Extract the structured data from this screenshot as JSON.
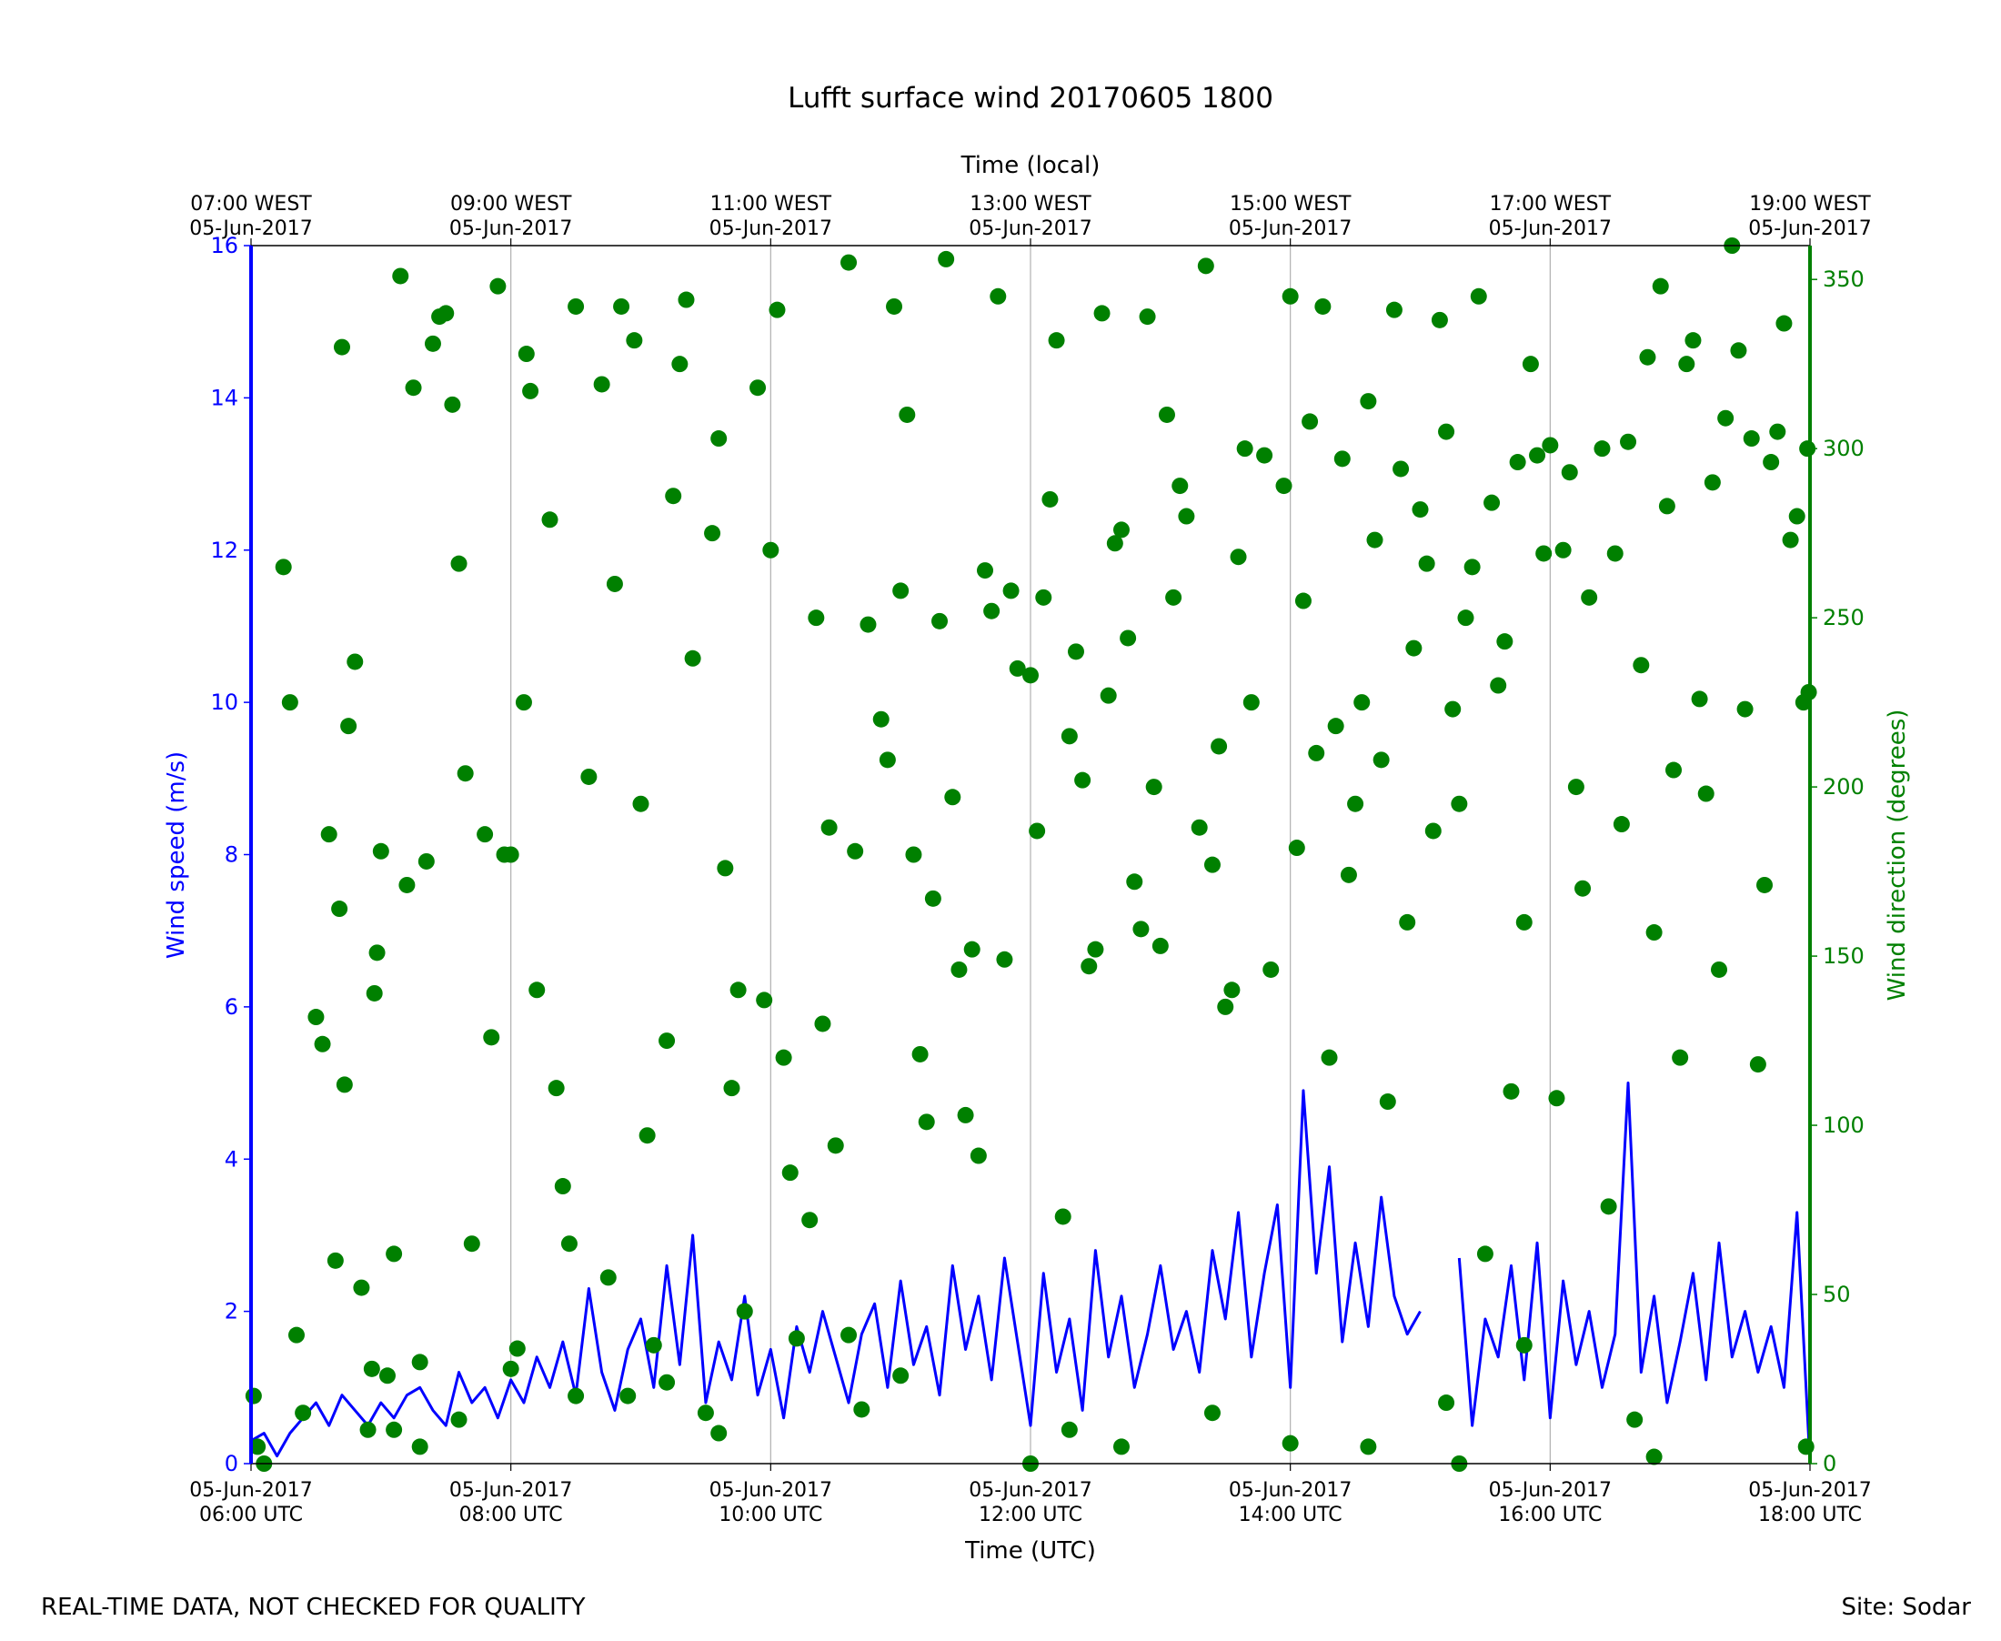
{
  "chart_data": {
    "type": "line",
    "title": "Lufft surface wind 20170605 1800",
    "x_label": "Time (UTC)",
    "x2_label": "Time (local)",
    "y_label": "Wind speed (m/s)",
    "y2_label": "Wind direction (degrees)",
    "footer_left": "REAL-TIME DATA, NOT CHECKED FOR QUALITY",
    "footer_right": "Site: Sodar",
    "grid": "x",
    "xlim": [
      6,
      18
    ],
    "xticks": [
      {
        "value": 6,
        "label": [
          "05-Jun-2017",
          "06:00 UTC"
        ]
      },
      {
        "value": 8,
        "label": [
          "05-Jun-2017",
          "08:00 UTC"
        ]
      },
      {
        "value": 10,
        "label": [
          "05-Jun-2017",
          "10:00 UTC"
        ]
      },
      {
        "value": 12,
        "label": [
          "05-Jun-2017",
          "12:00 UTC"
        ]
      },
      {
        "value": 14,
        "label": [
          "05-Jun-2017",
          "14:00 UTC"
        ]
      },
      {
        "value": 16,
        "label": [
          "05-Jun-2017",
          "16:00 UTC"
        ]
      },
      {
        "value": 18,
        "label": [
          "05-Jun-2017",
          "18:00 UTC"
        ]
      }
    ],
    "x2lim": [
      7,
      19
    ],
    "x2ticks": [
      {
        "value": 7,
        "label": [
          "07:00 WEST",
          "05-Jun-2017"
        ]
      },
      {
        "value": 9,
        "label": [
          "09:00 WEST",
          "05-Jun-2017"
        ]
      },
      {
        "value": 11,
        "label": [
          "11:00 WEST",
          "05-Jun-2017"
        ]
      },
      {
        "value": 13,
        "label": [
          "13:00 WEST",
          "05-Jun-2017"
        ]
      },
      {
        "value": 15,
        "label": [
          "15:00 WEST",
          "05-Jun-2017"
        ]
      },
      {
        "value": 17,
        "label": [
          "17:00 WEST",
          "05-Jun-2017"
        ]
      },
      {
        "value": 19,
        "label": [
          "19:00 WEST",
          "05-Jun-2017"
        ]
      }
    ],
    "ylim": [
      0,
      16
    ],
    "yticks": [
      0,
      2,
      4,
      6,
      8,
      10,
      12,
      14,
      16
    ],
    "y2lim": [
      0,
      360
    ],
    "y2ticks": [
      0,
      50,
      100,
      150,
      200,
      250,
      300,
      350
    ],
    "series": [
      {
        "type": "line",
        "color": "#0000ff",
        "x": [
          6.0,
          6.1,
          6.2,
          6.3,
          6.4,
          6.5,
          6.6,
          6.7,
          6.8,
          6.9,
          7.0,
          7.1,
          7.2,
          7.3,
          7.4,
          7.5,
          7.6,
          7.7,
          7.8,
          7.9,
          8.0,
          8.1,
          8.2,
          8.3,
          8.4,
          8.5,
          8.6,
          8.7,
          8.8,
          8.9,
          9.0,
          9.1,
          9.2,
          9.3,
          9.4,
          9.5,
          9.6,
          9.7,
          9.8,
          9.9,
          10.0,
          10.1,
          10.2,
          10.3,
          10.4,
          10.5,
          10.6,
          10.7,
          10.8,
          10.9,
          11.0,
          11.1,
          11.2,
          11.3,
          11.4,
          11.5,
          11.6,
          11.7,
          11.8,
          11.9,
          12.0,
          12.1,
          12.2,
          12.3,
          12.4,
          12.5,
          12.6,
          12.7,
          12.8,
          12.9,
          13.0,
          13.1,
          13.2,
          13.3,
          13.4,
          13.5,
          13.6,
          13.7,
          13.8,
          13.9,
          14.0,
          14.1,
          14.2,
          14.3,
          14.4,
          14.5,
          14.6,
          14.7,
          14.8,
          14.9,
          15.0,
          15.1,
          15.2,
          15.3,
          15.4,
          15.5,
          15.6,
          15.7,
          15.8,
          15.9,
          16.0,
          16.1,
          16.2,
          16.3,
          16.4,
          16.5,
          16.6,
          16.7,
          16.8,
          16.9,
          17.0,
          17.1,
          17.2,
          17.3,
          17.4,
          17.5,
          17.6,
          17.7,
          17.8,
          17.9,
          18.0
        ],
        "values": [
          0.3,
          0.4,
          0.1,
          0.4,
          0.6,
          0.8,
          0.5,
          0.9,
          0.7,
          0.5,
          0.8,
          0.6,
          0.9,
          1.0,
          0.7,
          0.5,
          1.2,
          0.8,
          1.0,
          0.6,
          1.1,
          0.8,
          1.4,
          1.0,
          1.6,
          0.9,
          2.3,
          1.2,
          0.7,
          1.5,
          1.9,
          1.0,
          2.6,
          1.3,
          3.0,
          0.8,
          1.6,
          1.1,
          2.2,
          0.9,
          1.5,
          0.6,
          1.8,
          1.2,
          2.0,
          1.4,
          0.8,
          1.7,
          2.1,
          1.0,
          2.4,
          1.3,
          1.8,
          0.9,
          2.6,
          1.5,
          2.2,
          1.1,
          2.7,
          1.6,
          0.5,
          2.5,
          1.2,
          1.9,
          0.7,
          2.8,
          1.4,
          2.2,
          1.0,
          1.7,
          2.6,
          1.5,
          2.0,
          1.2,
          2.8,
          1.9,
          3.3,
          1.4,
          2.5,
          3.4,
          1.0,
          4.9,
          2.5,
          3.9,
          1.6,
          2.9,
          1.8,
          3.5,
          2.2,
          1.7,
          2.0,
          null,
          null,
          2.7,
          0.5,
          1.9,
          1.4,
          2.6,
          1.1,
          2.9,
          0.6,
          2.4,
          1.3,
          2.0,
          1.0,
          1.7,
          5.0,
          1.2,
          2.2,
          0.8,
          1.6,
          2.5,
          1.1,
          2.9,
          1.4,
          2.0,
          1.2,
          1.8,
          1.0,
          3.3,
          0.0
        ]
      },
      {
        "type": "scatter",
        "axis": "y2",
        "color": "#008000",
        "x": [
          6.02,
          6.05,
          6.1,
          6.25,
          6.3,
          6.35,
          6.4,
          6.5,
          6.55,
          6.6,
          6.65,
          6.68,
          6.7,
          6.72,
          6.75,
          6.8,
          6.85,
          6.9,
          6.93,
          6.95,
          6.97,
          7.0,
          7.05,
          7.1,
          7.1,
          7.15,
          7.2,
          7.25,
          7.3,
          7.3,
          7.35,
          7.4,
          7.45,
          7.5,
          7.55,
          7.6,
          7.6,
          7.65,
          7.7,
          7.8,
          7.85,
          7.9,
          7.95,
          8.0,
          8.0,
          8.05,
          8.1,
          8.12,
          8.15,
          8.2,
          8.3,
          8.35,
          8.4,
          8.45,
          8.5,
          8.5,
          8.6,
          8.7,
          8.75,
          8.8,
          8.85,
          8.9,
          8.95,
          9.0,
          9.05,
          9.1,
          9.2,
          9.2,
          9.25,
          9.3,
          9.35,
          9.4,
          9.5,
          9.55,
          9.6,
          9.6,
          9.65,
          9.7,
          9.75,
          9.8,
          9.9,
          9.95,
          10.0,
          10.05,
          10.1,
          10.15,
          10.2,
          10.3,
          10.35,
          10.4,
          10.45,
          10.5,
          10.6,
          10.6,
          10.65,
          10.7,
          10.75,
          10.85,
          10.9,
          10.95,
          11.0,
          11.0,
          11.05,
          11.1,
          11.15,
          11.2,
          11.25,
          11.3,
          11.35,
          11.4,
          11.45,
          11.5,
          11.55,
          11.6,
          11.65,
          11.7,
          11.75,
          11.8,
          11.85,
          11.9,
          12.0,
          12.0,
          12.05,
          12.1,
          12.15,
          12.2,
          12.25,
          12.3,
          12.3,
          12.35,
          12.4,
          12.45,
          12.5,
          12.55,
          12.6,
          12.65,
          12.7,
          12.7,
          12.75,
          12.8,
          12.85,
          12.9,
          12.95,
          13.0,
          13.05,
          13.1,
          13.15,
          13.2,
          13.3,
          13.35,
          13.4,
          13.4,
          13.45,
          13.5,
          13.55,
          13.6,
          13.65,
          13.7,
          13.8,
          13.85,
          13.95,
          14.0,
          14.0,
          14.05,
          14.1,
          14.15,
          14.2,
          14.25,
          14.3,
          14.35,
          14.4,
          14.45,
          14.5,
          14.55,
          14.6,
          14.6,
          14.65,
          14.7,
          14.75,
          14.8,
          14.85,
          14.9,
          14.95,
          15.0,
          15.05,
          15.1,
          15.15,
          15.2,
          15.2,
          15.25,
          15.3,
          15.3,
          15.35,
          15.4,
          15.45,
          15.5,
          15.55,
          15.6,
          15.65,
          15.7,
          15.75,
          15.8,
          15.8,
          15.85,
          15.9,
          15.95,
          16.0,
          16.05,
          16.1,
          16.15,
          16.2,
          16.25,
          16.3,
          16.4,
          16.45,
          16.5,
          16.55,
          16.6,
          16.65,
          16.7,
          16.75,
          16.8,
          16.8,
          16.85,
          16.9,
          16.95,
          17.0,
          17.05,
          17.1,
          17.15,
          17.2,
          17.25,
          17.3,
          17.35,
          17.4,
          17.45,
          17.5,
          17.55,
          17.6,
          17.65,
          17.7,
          17.75,
          17.8,
          17.85,
          17.9,
          17.95,
          17.97,
          17.98,
          17.99
        ],
        "values": [
          20,
          5,
          0,
          265,
          225,
          38,
          15,
          132,
          124,
          186,
          60,
          164,
          330,
          112,
          218,
          237,
          52,
          10,
          28,
          139,
          151,
          181,
          26,
          62,
          10,
          351,
          171,
          318,
          5,
          30,
          178,
          331,
          339,
          340,
          313,
          266,
          13,
          204,
          65,
          186,
          126,
          348,
          180,
          180,
          28,
          34,
          225,
          328,
          317,
          140,
          279,
          111,
          82,
          65,
          342,
          20,
          203,
          319,
          55,
          260,
          342,
          20,
          332,
          195,
          97,
          35,
          125,
          24,
          286,
          325,
          344,
          238,
          15,
          275,
          303,
          9,
          176,
          111,
          140,
          45,
          318,
          137,
          270,
          341,
          120,
          86,
          37,
          72,
          250,
          130,
          188,
          94,
          355,
          38,
          181,
          16,
          248,
          220,
          208,
          342,
          258,
          26,
          310,
          180,
          121,
          101,
          167,
          249,
          356,
          197,
          146,
          103,
          152,
          91,
          264,
          252,
          345,
          149,
          258,
          235,
          233,
          0,
          187,
          256,
          285,
          332,
          73,
          215,
          10,
          240,
          202,
          147,
          152,
          340,
          227,
          272,
          276,
          5,
          244,
          172,
          158,
          339,
          200,
          153,
          310,
          256,
          289,
          280,
          188,
          354,
          177,
          15,
          212,
          135,
          140,
          268,
          300,
          225,
          298,
          146,
          289,
          345,
          6,
          182,
          255,
          308,
          210,
          342,
          120,
          218,
          297,
          174,
          195,
          225,
          314,
          5,
          273,
          208,
          107,
          341,
          294,
          160,
          241,
          282,
          266,
          187,
          338,
          305,
          18,
          223,
          195,
          0,
          250,
          265,
          345,
          62,
          284,
          230,
          243,
          110,
          296,
          160,
          35,
          325,
          298,
          269,
          301,
          108,
          270,
          293,
          200,
          170,
          256,
          300,
          76,
          269,
          189,
          302,
          13,
          236,
          327,
          157,
          2,
          348,
          283,
          205,
          120,
          325,
          332,
          226,
          198,
          290,
          146,
          309,
          360,
          329,
          223,
          303,
          118,
          171,
          296,
          305,
          337,
          273,
          280,
          225,
          5,
          300,
          228
        ]
      }
    ]
  }
}
